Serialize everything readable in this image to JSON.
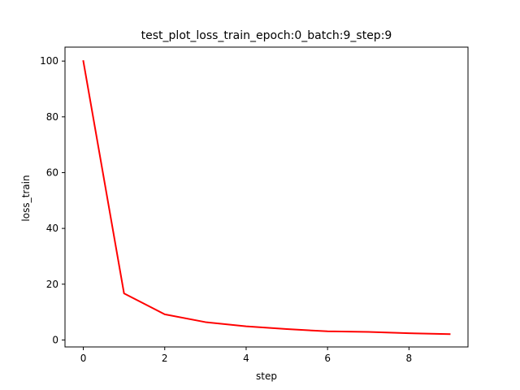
{
  "chart_data": {
    "type": "line",
    "title": "test_plot_loss_train_epoch:0_batch:9_step:9",
    "xlabel": "step",
    "ylabel": "loss_train",
    "xlim": [
      -0.45,
      9.45
    ],
    "ylim": [
      -2.5,
      105.0
    ],
    "xticks": [
      0,
      2,
      4,
      6,
      8
    ],
    "yticks": [
      0,
      20,
      40,
      60,
      80,
      100
    ],
    "grid": false,
    "series": [
      {
        "color": "#ff0000",
        "x": [
          0,
          1,
          2,
          3,
          4,
          5,
          6,
          7,
          8,
          9
        ],
        "y": [
          100,
          16.7,
          9.2,
          6.4,
          4.9,
          3.9,
          3.1,
          2.9,
          2.4,
          2.1
        ]
      }
    ]
  }
}
